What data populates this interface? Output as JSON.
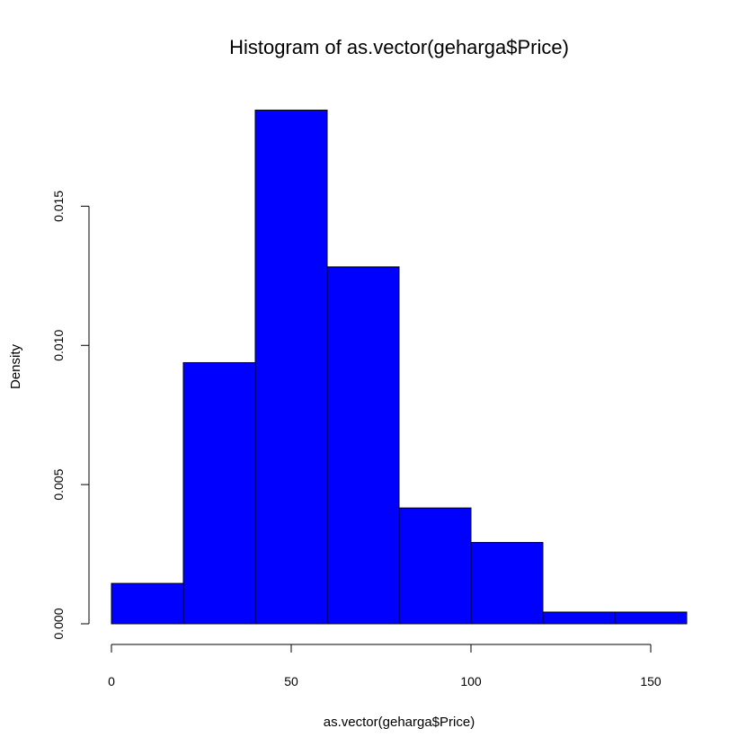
{
  "chart_data": {
    "type": "bar",
    "title": "Histogram of as.vector(geharga$Price)",
    "xlabel": "as.vector(geharga$Price)",
    "ylabel": "Density",
    "bins": [
      {
        "from": 0,
        "to": 20,
        "density": 0.00145
      },
      {
        "from": 20,
        "to": 40,
        "density": 0.00938
      },
      {
        "from": 40,
        "to": 60,
        "density": 0.01845
      },
      {
        "from": 60,
        "to": 80,
        "density": 0.01282
      },
      {
        "from": 80,
        "to": 100,
        "density": 0.00416
      },
      {
        "from": 100,
        "to": 120,
        "density": 0.00292
      },
      {
        "from": 120,
        "to": 140,
        "density": 0.00042
      },
      {
        "from": 140,
        "to": 160,
        "density": 0.00042
      }
    ],
    "xlim": [
      0,
      160
    ],
    "ylim": [
      0,
      0.0185
    ],
    "x_ticks": [
      0,
      50,
      100,
      150
    ],
    "y_ticks": [
      0.0,
      0.005,
      0.01,
      0.015
    ],
    "x_tick_labels": [
      "0",
      "50",
      "100",
      "150"
    ],
    "y_tick_labels": [
      "0.000",
      "0.005",
      "0.010",
      "0.015"
    ],
    "bar_color": "#0000ff",
    "bar_border_color": "#000000",
    "grid": false,
    "legend": "none"
  }
}
